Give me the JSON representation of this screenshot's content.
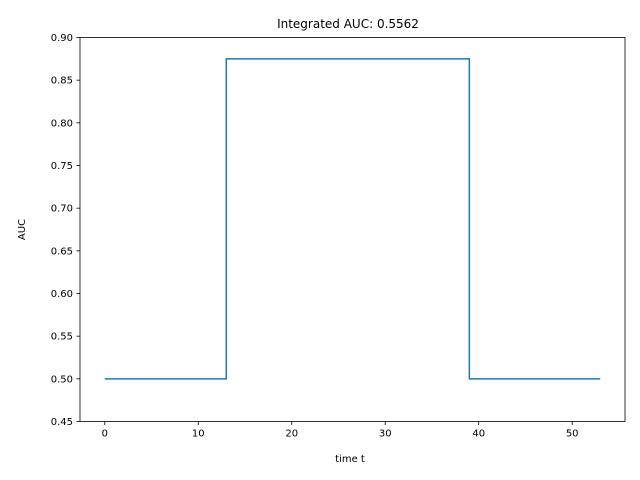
{
  "chart_data": {
    "type": "line",
    "title": "Integrated AUC: 0.5562",
    "xlabel": "time t",
    "ylabel": "AUC",
    "xlim": [
      -2.65,
      55.65
    ],
    "ylim": [
      0.45,
      0.9
    ],
    "xticks": [
      0,
      10,
      20,
      30,
      40,
      50
    ],
    "yticks": [
      0.45,
      0.5,
      0.55,
      0.6,
      0.65,
      0.7,
      0.75,
      0.8,
      0.85,
      0.9
    ],
    "ytick_labels": [
      "0.45",
      "0.50",
      "0.55",
      "0.60",
      "0.65",
      "0.70",
      "0.75",
      "0.80",
      "0.85",
      "0.90"
    ],
    "grid": false,
    "step": "post",
    "series": [
      {
        "color": "#1f77b4",
        "x": [
          0,
          13,
          39,
          53
        ],
        "y": [
          0.5,
          0.875,
          0.5,
          0.5
        ]
      }
    ]
  }
}
